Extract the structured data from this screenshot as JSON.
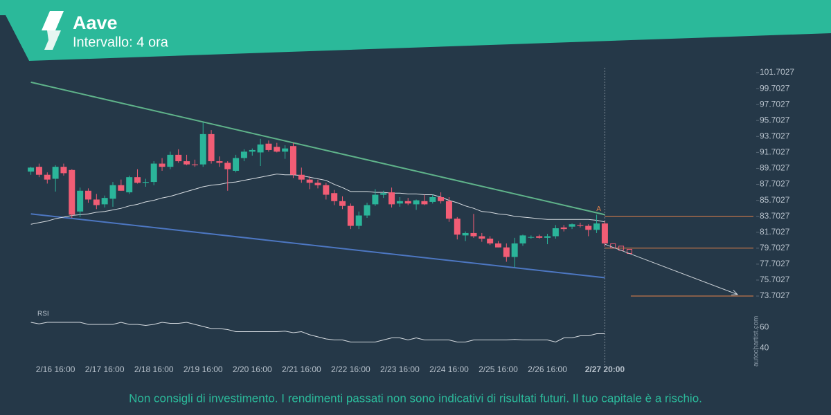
{
  "chart_data": {
    "type": "candlestick",
    "title": "Aave",
    "subtitle": "Intervallo: 4 ora",
    "disclaimer": "Non consigli di investimento. I rendimenti passati non sono indicativi di risultati futuri. Il tuo capitale è a rischio.",
    "watermark": "autochartist.com",
    "categories": [
      null,
      null,
      null,
      "2/16 16:00",
      null,
      null,
      null,
      null,
      null,
      "2/17 16:00",
      null,
      null,
      null,
      null,
      null,
      "2/18 16:00",
      null,
      null,
      null,
      null,
      null,
      "2/19 16:00",
      null,
      null,
      null,
      null,
      null,
      "2/20 16:00",
      null,
      null,
      null,
      null,
      null,
      "2/21 16:00",
      null,
      null,
      null,
      null,
      null,
      "2/22 16:00",
      null,
      null,
      null,
      null,
      null,
      "2/23 16:00",
      null,
      null,
      null,
      null,
      null,
      "2/24 16:00",
      null,
      null,
      null,
      null,
      null,
      "2/25 16:00",
      null,
      null,
      null,
      null,
      null,
      "2/26 16:00",
      null,
      null,
      null,
      null,
      null,
      null,
      "2/27 20:00"
    ],
    "open": [
      89.3,
      89.9,
      88.9,
      88.4,
      89.9,
      89.5,
      84.3,
      86.9,
      85.8,
      85.2,
      85.9,
      87.6,
      86.7,
      88.6,
      87.9,
      88.0,
      90.3,
      89.9,
      91.4,
      90.6,
      90.2,
      90.2,
      94.0,
      90.6,
      90.4,
      89.4,
      91.0,
      91.8,
      91.7,
      92.8,
      92.4,
      91.8,
      92.5,
      88.9,
      88.3,
      87.9,
      87.6,
      86.6,
      85.6,
      85.0,
      82.5,
      83.8,
      85.2,
      86.4,
      86.7,
      85.3,
      85.6,
      85.2,
      85.6,
      85.5,
      86.1,
      85.6,
      83.4,
      81.3,
      81.6,
      81.2,
      80.9,
      80.3,
      79.8,
      78.6,
      80.3,
      81.1,
      81.2,
      81.0,
      81.2,
      82.3,
      82.4,
      82.6,
      82.5,
      82.0,
      82.8
    ],
    "high": [
      89.9,
      90.3,
      89.2,
      90.1,
      90.3,
      89.6,
      87.3,
      87.2,
      86.5,
      86.3,
      88.0,
      88.3,
      88.8,
      89.6,
      88.4,
      90.6,
      91.0,
      91.8,
      92.1,
      91.4,
      90.8,
      95.5,
      94.5,
      91.2,
      90.6,
      91.4,
      92.1,
      92.2,
      93.4,
      93.2,
      92.9,
      92.6,
      92.9,
      89.8,
      88.7,
      88.3,
      87.9,
      87.0,
      86.2,
      85.3,
      84.3,
      85.4,
      87.1,
      86.9,
      87.3,
      86.1,
      86.0,
      85.8,
      86.4,
      86.4,
      86.7,
      86.1,
      83.6,
      81.8,
      84.0,
      81.6,
      81.2,
      80.6,
      80.3,
      81.0,
      81.4,
      81.3,
      81.4,
      81.5,
      82.6,
      82.6,
      82.8,
      82.9,
      82.7,
      83.9,
      83.1
    ],
    "low": [
      88.9,
      88.6,
      87.8,
      86.8,
      88.8,
      83.5,
      83.6,
      85.4,
      84.6,
      84.8,
      84.9,
      86.9,
      86.5,
      87.8,
      87.4,
      87.6,
      89.4,
      89.6,
      90.4,
      90.1,
      89.9,
      89.9,
      90.3,
      89.9,
      86.9,
      89.2,
      90.6,
      91.3,
      90.0,
      91.8,
      91.7,
      90.9,
      88.5,
      87.9,
      87.1,
      87.2,
      85.8,
      85.1,
      84.6,
      82.1,
      82.1,
      83.5,
      85.0,
      86.0,
      84.8,
      84.9,
      85.1,
      84.5,
      85.1,
      85.3,
      85.3,
      83.0,
      80.8,
      80.6,
      81.0,
      80.5,
      80.1,
      79.8,
      78.0,
      77.3,
      80.0,
      80.9,
      80.9,
      80.2,
      80.9,
      81.8,
      82.1,
      82.3,
      81.2,
      81.6,
      79.9
    ],
    "close": [
      89.8,
      88.9,
      88.3,
      89.9,
      89.1,
      83.9,
      86.9,
      85.8,
      85.1,
      86.0,
      87.6,
      86.9,
      88.6,
      87.9,
      88.0,
      90.3,
      89.9,
      91.4,
      90.6,
      90.2,
      90.1,
      94.0,
      90.6,
      90.4,
      89.6,
      91.0,
      91.8,
      92.0,
      92.7,
      92.0,
      91.8,
      92.2,
      88.9,
      88.3,
      87.9,
      87.6,
      86.4,
      85.6,
      85.0,
      82.5,
      83.8,
      85.1,
      86.4,
      86.6,
      85.2,
      85.6,
      85.3,
      85.7,
      85.2,
      86.1,
      85.6,
      83.4,
      81.4,
      81.6,
      81.2,
      80.9,
      80.3,
      79.8,
      78.6,
      80.3,
      81.3,
      81.1,
      81.0,
      81.2,
      82.2,
      82.1,
      82.7,
      82.5,
      82.0,
      82.8,
      80.3
    ],
    "up_color": "#2bb59a",
    "down_color": "#f25d75",
    "moving_average": {
      "color": "#d8dde2",
      "values": [
        82.7,
        82.9,
        83.1,
        83.4,
        83.6,
        83.8,
        83.9,
        84.0,
        84.2,
        84.3,
        84.5,
        84.7,
        85.0,
        85.2,
        85.5,
        85.7,
        86.0,
        86.2,
        86.5,
        86.8,
        87.1,
        87.4,
        87.6,
        87.7,
        87.9,
        88.0,
        88.2,
        88.4,
        88.6,
        88.8,
        89.0,
        88.9,
        88.9,
        88.8,
        88.6,
        88.4,
        88.2,
        87.7,
        87.3,
        86.8,
        86.8,
        86.8,
        86.7,
        86.7,
        86.6,
        86.6,
        86.5,
        86.5,
        86.4,
        86.4,
        86.1,
        85.7,
        85.4,
        85.0,
        84.7,
        84.3,
        84.2,
        84.0,
        83.9,
        83.7,
        83.6,
        83.5,
        83.4,
        83.3,
        83.3,
        83.3,
        83.3,
        83.3,
        83.3,
        83.2,
        83.0
      ]
    },
    "resistance": {
      "color": "#5fb38a",
      "values": [
        100.5,
        83.9
      ]
    },
    "support": {
      "color": "#4d77c2",
      "values": [
        84.0,
        76.0
      ]
    },
    "pattern_label": "A",
    "levels": {
      "color": "#e8834a",
      "values": [
        83.7027,
        79.7027,
        73.7027
      ]
    },
    "forecast": [
      80.0,
      79.7,
      79.3
    ],
    "projection": {
      "color": "#c8ced4",
      "values": [
        80.2,
        73.9
      ]
    },
    "ylim": [
      72.7,
      102.7
    ],
    "yticks": [
      101.7027,
      99.7027,
      97.7027,
      95.7027,
      93.7027,
      91.7027,
      89.7027,
      87.7027,
      85.7027,
      83.7027,
      81.7027,
      79.7027,
      77.7027,
      75.7027,
      73.7027
    ],
    "rsi": {
      "label": "RSI",
      "color": "#d8dde2",
      "ylim": [
        25,
        79
      ],
      "yticks": [
        40,
        60
      ],
      "values": [
        65,
        63.5,
        65,
        65,
        65,
        65,
        65,
        63,
        63,
        63,
        63,
        65,
        63,
        63,
        62,
        63,
        65,
        64,
        64,
        65,
        63,
        61,
        59,
        59,
        58,
        56,
        56,
        56,
        56,
        56,
        56,
        56.5,
        55,
        56,
        53,
        51,
        49,
        48,
        48,
        46,
        46,
        46,
        46,
        48,
        50,
        50,
        48,
        50,
        48,
        48,
        48,
        48,
        46,
        46,
        48,
        48,
        48,
        48,
        48,
        48.5,
        48,
        48,
        48,
        48,
        46,
        50,
        50,
        52,
        52,
        54,
        54
      ]
    }
  }
}
